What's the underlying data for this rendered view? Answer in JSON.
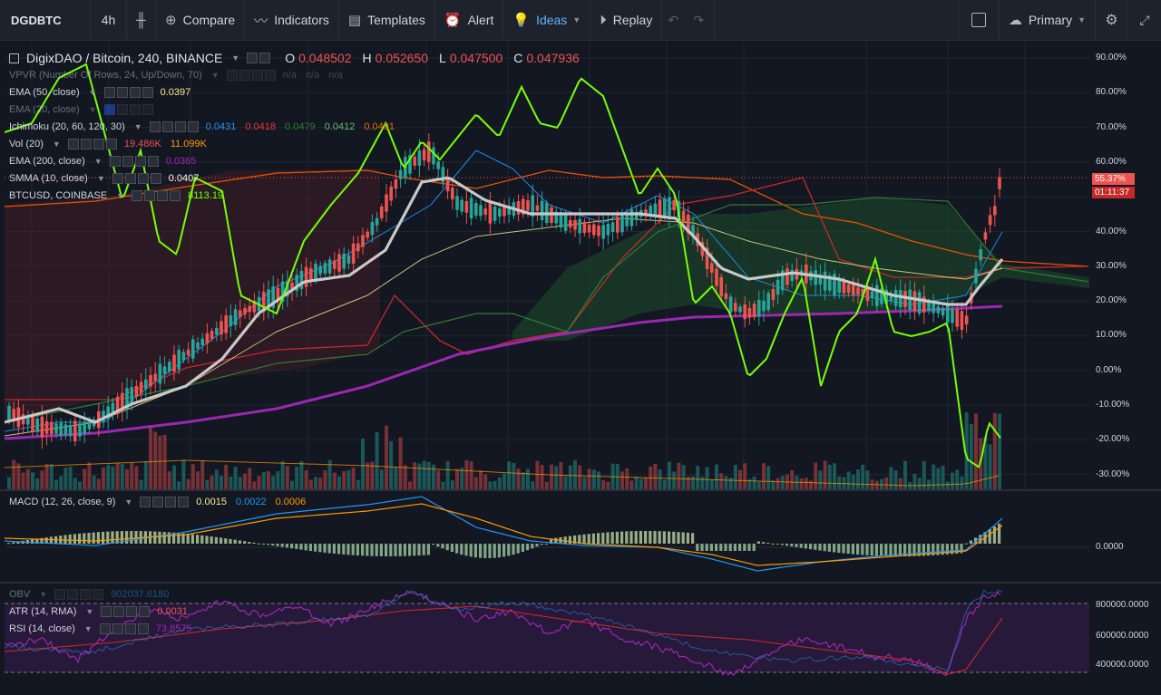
{
  "toolbar": {
    "symbol": "DGDBTC",
    "interval": "4h",
    "compare": "Compare",
    "indicators": "Indicators",
    "templates": "Templates",
    "alert": "Alert",
    "ideas": "Ideas",
    "replay": "Replay",
    "layout": "Primary"
  },
  "header": {
    "title": "DigixDAO / Bitcoin, 240, BINANCE",
    "o_key": "O",
    "o": "0.048502",
    "h_key": "H",
    "h": "0.052650",
    "l_key": "L",
    "l": "0.047500",
    "c_key": "C",
    "c": "0.047936"
  },
  "legends": [
    {
      "name": "VPVR (Number Of Rows, 24, Up/Down, 70)",
      "values": [
        "n/a",
        "n/a",
        "n/a"
      ],
      "colors": [
        "#787b86",
        "#787b86",
        "#787b86"
      ],
      "faded": true
    },
    {
      "name": "EMA (50, close)",
      "values": [
        "0.0397"
      ],
      "colors": [
        "#f7e98e"
      ],
      "faded": false
    },
    {
      "name": "EMA (20, close)",
      "values": [],
      "colors": [],
      "faded": true
    },
    {
      "name": "Ichimoku (20, 60, 120, 30)",
      "values": [
        "0.0431",
        "0.0418",
        "0.0479",
        "0.0412",
        "0.0401"
      ],
      "colors": [
        "#2196f3",
        "#e53935",
        "#2e7d32",
        "#66bb6a",
        "#ef6c00"
      ],
      "faded": false
    },
    {
      "name": "Vol (20)",
      "values": [
        "19.486K",
        "11.099K"
      ],
      "colors": [
        "#ef5350",
        "#ff9800"
      ],
      "faded": false
    },
    {
      "name": "EMA (200, close)",
      "values": [
        "0.0365"
      ],
      "colors": [
        "#9c27b0"
      ],
      "faded": false
    },
    {
      "name": "SMMA (10, close)",
      "values": [
        "0.0407"
      ],
      "colors": [
        "#ffffff"
      ],
      "faded": false
    },
    {
      "name": "BTCUSD, COINBASE",
      "values": [
        "8113.19"
      ],
      "colors": [
        "#76ff03"
      ],
      "faded": false
    }
  ],
  "macd_legend": {
    "name": "MACD (12, 26, close, 9)",
    "values": [
      "0.0015",
      "0.0022",
      "0.0006"
    ],
    "colors": [
      "#f7e98e",
      "#2196f3",
      "#ff9800"
    ]
  },
  "osc_legends": [
    {
      "name": "OBV",
      "values": [
        "902037.6180"
      ],
      "colors": [
        "#2196f3"
      ],
      "faded": true
    },
    {
      "name": "ATR (14, RMA)",
      "values": [
        "0.0031"
      ],
      "colors": [
        "#ef5350"
      ],
      "faded": false
    },
    {
      "name": "RSI (14, close)",
      "values": [
        "73.8575"
      ],
      "colors": [
        "#9c27b0"
      ],
      "faded": false
    }
  ],
  "main_scale": [
    "90.00%",
    "80.00%",
    "70.00%",
    "60.00%",
    "50.00%",
    "40.00%",
    "30.00%",
    "20.00%",
    "10.00%",
    "0.00%",
    "-10.00%",
    "-20.00%",
    "-30.00%"
  ],
  "price_label": "55.37%",
  "countdown": "01:11:37",
  "macd_scale": [
    "0.0000"
  ],
  "osc_scale": [
    "800000.0000",
    "600000.0000",
    "400000.0000"
  ],
  "colors": {
    "background": "#131722",
    "up": "#26a69a",
    "down": "#ef5350",
    "btc_line": "#76ff03",
    "ema200": "#9c27b0",
    "smma": "#c8c8c8"
  }
}
